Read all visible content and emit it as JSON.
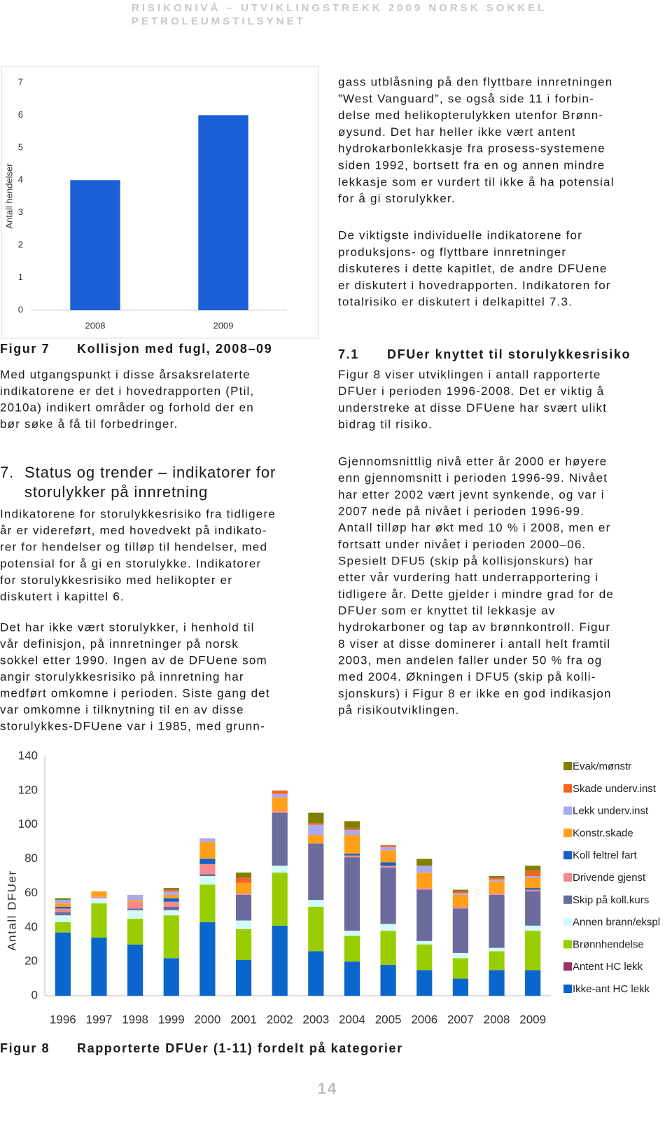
{
  "header": {
    "title": "RISIKONIVÅ – UTVIKLINGSTREKK 2009 NORSK SOKKEL",
    "subtitle": "PETROLEUMSTILSYNET"
  },
  "chart_data": [
    {
      "type": "bar",
      "ylabel": "Antall hendelser",
      "categories": [
        "2008",
        "2009"
      ],
      "values": [
        4,
        6
      ],
      "color": "#1a5fd6",
      "ylim": [
        0,
        7
      ],
      "yticks": [
        0,
        1,
        2,
        3,
        4,
        5,
        6,
        7
      ],
      "grid": false
    },
    {
      "type": "stacked_bar",
      "ylabel": "Antall DFUer",
      "categories": [
        "1996",
        "1997",
        "1998",
        "1999",
        "2000",
        "2001",
        "2002",
        "2003",
        "2004",
        "2005",
        "2006",
        "2007",
        "2008",
        "2009"
      ],
      "series": [
        {
          "name": "Evak/mønstr",
          "color": "#808000",
          "values": [
            1,
            0,
            0,
            1,
            0,
            3,
            0,
            6,
            4,
            0,
            4,
            1,
            1,
            3
          ]
        },
        {
          "name": "Skade underv.inst",
          "color": "#f26522",
          "values": [
            0,
            0,
            0,
            1,
            0,
            3,
            2,
            1,
            1,
            1,
            0,
            1,
            1,
            3
          ]
        },
        {
          "name": "Lekk underv.inst",
          "color": "#aaaaf2",
          "values": [
            2,
            0,
            3,
            2,
            2,
            0,
            2,
            6,
            3,
            2,
            4,
            1,
            1,
            1
          ]
        },
        {
          "name": "Konstr.skade",
          "color": "#ff9f1a",
          "values": [
            2,
            3,
            1,
            2,
            10,
            6,
            8,
            5,
            11,
            7,
            9,
            7,
            7,
            6
          ]
        },
        {
          "name": "Koll feltrel fart",
          "color": "#1560c4",
          "values": [
            1,
            0,
            0,
            2,
            3,
            0,
            0,
            0,
            1,
            2,
            0,
            0,
            0,
            1
          ]
        },
        {
          "name": "Drivende gjenst",
          "color": "#f28c8c",
          "values": [
            2,
            1,
            4,
            3,
            6,
            1,
            1,
            0,
            1,
            1,
            1,
            1,
            1,
            1
          ]
        },
        {
          "name": "Skip på koll.kurs",
          "color": "#6b6b9e",
          "values": [
            2,
            0,
            1,
            2,
            1,
            15,
            31,
            33,
            43,
            33,
            30,
            26,
            31,
            20
          ]
        },
        {
          "name": "Annen brann/ekspl",
          "color": "#d4fbfb",
          "values": [
            4,
            3,
            5,
            3,
            5,
            5,
            4,
            4,
            3,
            4,
            2,
            3,
            2,
            3
          ]
        },
        {
          "name": "Brønnhendelse",
          "color": "#9acd00",
          "values": [
            6,
            20,
            15,
            25,
            22,
            18,
            31,
            26,
            15,
            20,
            15,
            12,
            11,
            23
          ]
        },
        {
          "name": "Antent HC lekk",
          "color": "#993366",
          "values": [
            0,
            0,
            0,
            0,
            0,
            0,
            0,
            0,
            0,
            0,
            0,
            0,
            0,
            0
          ]
        },
        {
          "name": "Ikke-ant HC lekk",
          "color": "#0a66cc",
          "values": [
            37,
            34,
            30,
            22,
            43,
            21,
            41,
            26,
            20,
            18,
            15,
            10,
            15,
            15
          ]
        }
      ],
      "ylim": [
        0,
        140
      ],
      "yticks": [
        0,
        20,
        40,
        60,
        80,
        100,
        120,
        140
      ],
      "grid": false,
      "legend": "right"
    }
  ],
  "figure_7": {
    "label": "Figur 7",
    "caption": "Kollisjon med fugl, 2008–09"
  },
  "left_column": {
    "paragraph_1": [
      "Med utgangspunkt i disse årsaksrelaterte",
      "indikatorene er det i hovedrapporten (Ptil,",
      "2010a) indikert områder og forhold der en",
      "bør søke å få til forbedringer."
    ],
    "section_heading": {
      "number": "7.",
      "lines": [
        "Status og trender – indikatorer for",
        "storulykker på innretning"
      ]
    },
    "paragraph_2": [
      "Indikatorene for storulykkesrisiko fra tidligere",
      "år er videreført, med hovedvekt på indikato-",
      "rer for hendelser og tilløp til hendelser, med",
      "potensial for å gi en storulykke. Indikatorer",
      "for storulykkesrisiko med helikopter er",
      "diskutert i kapittel 6."
    ],
    "paragraph_3": [
      "Det har ikke vært storulykker, i henhold til",
      "vår definisjon, på innretninger på norsk",
      "sokkel etter 1990. Ingen av de DFUene som",
      "angir storulykkesrisiko på innretning har",
      "medført omkomne i perioden. Siste gang det",
      "var omkomne i tilknytning til en av disse",
      "storulykkes-DFUene var i 1985, med grunn-"
    ]
  },
  "right_column": {
    "paragraph_1": [
      "gass utblåsning på den flyttbare innretningen",
      "”West Vanguard”, se også side 11 i forbin-",
      "delse med helikopterulykken utenfor Brønn-",
      "øysund. Det har heller ikke vært antent",
      "hydrokarbonlekkasje fra prosess-systemene",
      "siden 1992, bortsett fra en og annen mindre",
      "lekkasje som er vurdert til ikke å ha potensial",
      "for å gi storulykker."
    ],
    "paragraph_2": [
      "De viktigste individuelle indikatorene for",
      "produksjons- og flyttbare innretninger",
      "diskuteres i dette kapitlet, de andre DFUene",
      "er diskutert i hovedrapporten. Indikatoren for",
      "totalrisiko er diskutert i delkapittel 7.3."
    ],
    "section_heading": {
      "number": "7.1",
      "title": "DFUer knyttet til storulykkesrisiko"
    },
    "paragraph_3": [
      "Figur 8 viser utviklingen i antall rapporterte",
      "DFUer i perioden 1996-2008. Det er viktig å",
      "understreke at disse DFUene har svært ulikt",
      "bidrag til risiko."
    ],
    "paragraph_4": [
      "Gjennomsnittlig nivå etter år 2000 er høyere",
      "enn gjennomsnitt i perioden 1996-99. Nivået",
      "har etter 2002 vært jevnt synkende, og var i",
      "2007 nede på nivået i perioden 1996-99.",
      "Antall tilløp har økt med 10 % i 2008, men er",
      "fortsatt under nivået i perioden 2000–06.",
      "Spesielt DFU5 (skip på kollisjonskurs) har",
      "etter vår vurdering hatt underrapportering i",
      "tidligere år. Dette gjelder i mindre grad for de",
      "DFUer som er knyttet til lekkasje av",
      "hydrokarboner og tap av brønnkontroll. Figur",
      "8 viser at disse dominerer i antall helt framtil",
      "2003, men andelen faller under 50 % fra og",
      "med 2004. Økningen i DFU5 (skip på kolli-",
      "sjonskurs) i Figur 8 er ikke en god indikasjon",
      "på risikoutviklingen."
    ]
  },
  "figure_8": {
    "label": "Figur 8",
    "caption": "Rapporterte DFUer (1-11) fordelt på kategorier"
  },
  "page_number": "14"
}
